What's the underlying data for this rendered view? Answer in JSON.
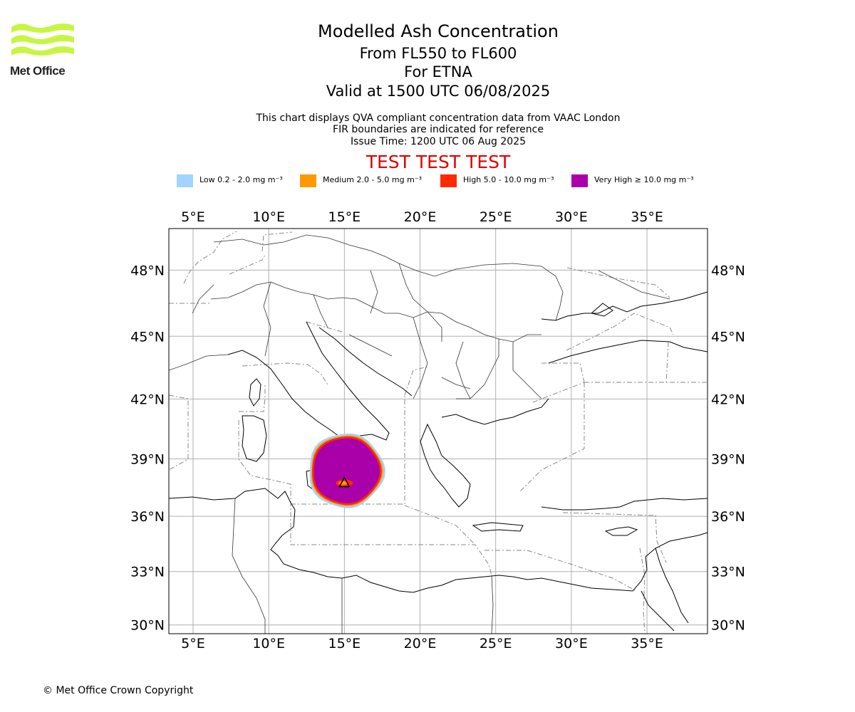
{
  "logo": {
    "text": "Met Office",
    "colors": {
      "waves": "#c8f542",
      "text": "#222222"
    }
  },
  "title": {
    "main": "Modelled Ash Concentration",
    "levels": "From FL550 to FL600",
    "volcano": "For ETNA",
    "valid": "Valid at 1500 UTC 06/08/2025"
  },
  "subtitle": {
    "line1": "This chart displays QVA compliant concentration data from VAAC London",
    "line2": "FIR boundaries are indicated for reference",
    "issue": "Issue Time: 1200 UTC 06 Aug 2025"
  },
  "test_banner": "TEST TEST TEST",
  "legend": [
    {
      "label": "Low 0.2 - 2.0 mg m⁻³",
      "color": "#a3d3ff"
    },
    {
      "label": "Medium 2.0 - 5.0 mg m⁻³",
      "color": "#ff9900"
    },
    {
      "label": "High 5.0 - 10.0 mg m⁻³",
      "color": "#ff2a00"
    },
    {
      "label": "Very High ≥ 10.0 mg m⁻³",
      "color": "#aa00aa"
    }
  ],
  "map": {
    "lon_range": [
      3.4,
      39.0
    ],
    "lat_range": [
      29.5,
      49.8
    ],
    "lon_ticks": [
      "5°E",
      "10°E",
      "15°E",
      "20°E",
      "25°E",
      "30°E",
      "35°E"
    ],
    "lat_ticks": [
      "48°N",
      "45°N",
      "42°N",
      "39°N",
      "36°N",
      "33°N",
      "30°N"
    ],
    "grid": true,
    "volcano_marker": {
      "name": "ETNA",
      "lon": 15.0,
      "lat": 37.75
    },
    "ash_cloud": {
      "center_lon": 15.1,
      "center_lat": 38.4,
      "lon_radius": 2.5,
      "lat_radius": 1.9
    }
  },
  "footer": {
    "copyright": "© Met Office Crown Copyright"
  }
}
